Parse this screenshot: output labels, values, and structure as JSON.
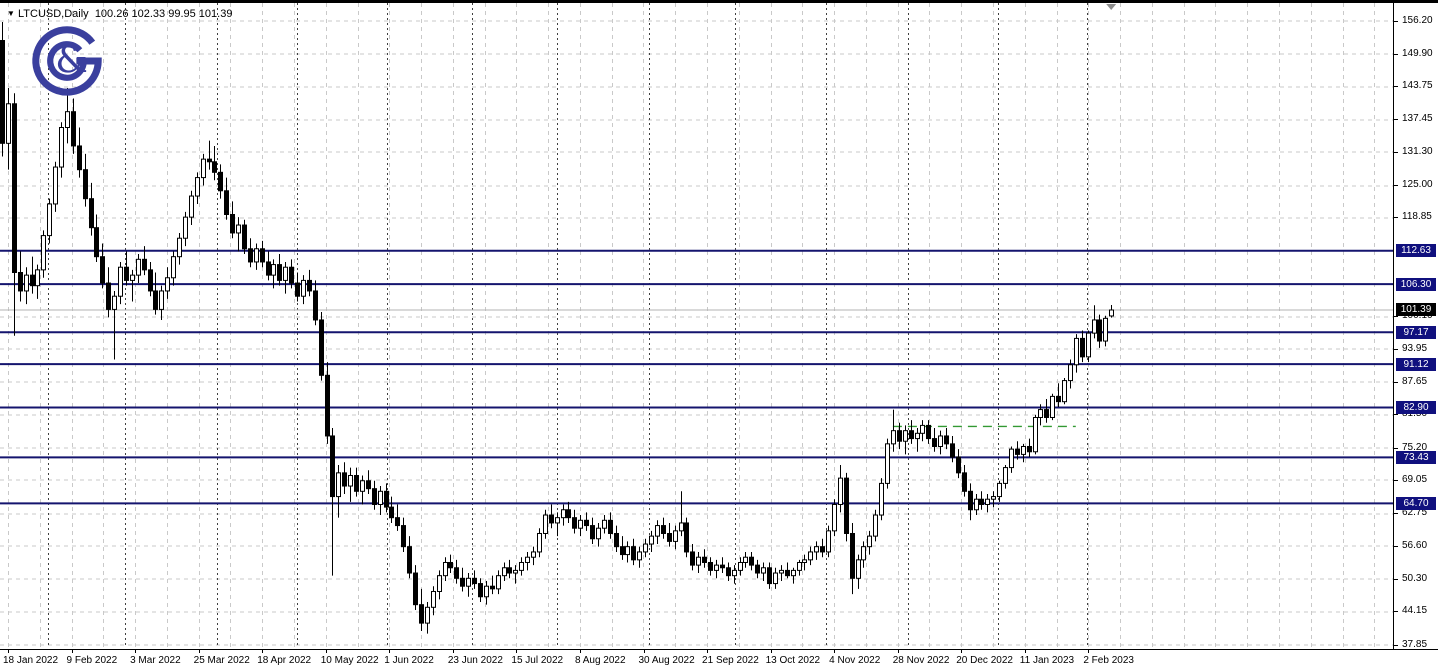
{
  "header": {
    "dropdown_glyph": "▼",
    "symbol": "LTCUSD,Daily",
    "quote": "100.26 102.33 99.95 101.39"
  },
  "logo": {
    "glyph": "&",
    "color": "#3a3f9e"
  },
  "colors": {
    "frame": "#000000",
    "grid": "#c9c9c9",
    "separator": "#3f3f3f",
    "level_line": "#14146e",
    "badge_bg": "#10107e",
    "current_badge_bg": "#000000",
    "badge_text": "#ffffff",
    "trend": "#339933",
    "current_line": "#b3b3b3",
    "bull_body": "#ffffff",
    "bear_body": "#000000",
    "wick": "#000000",
    "shift_marker": "#8c8c8c"
  },
  "chart_data": {
    "type": "candlestick",
    "symbol": "LTCUSD",
    "timeframe": "Daily",
    "title": "LTCUSD,Daily",
    "last_quote": {
      "open": 100.26,
      "high": 102.33,
      "low": 99.95,
      "close": 101.39
    },
    "current_price": 101.39,
    "y_axis": {
      "max": 156.2,
      "min": 37.85,
      "ticks": [
        156.2,
        149.9,
        143.75,
        137.45,
        131.3,
        125.0,
        118.85,
        100.1,
        93.95,
        87.65,
        81.5,
        75.2,
        69.05,
        62.75,
        56.6,
        50.3,
        44.15,
        37.85
      ]
    },
    "x_labels": [
      "18 Jan 2022",
      "9 Feb 2022",
      "3 Mar 2022",
      "25 Mar 2022",
      "18 Apr 2022",
      "10 May 2022",
      "1 Jun 2022",
      "23 Jun 2022",
      "15 Jul 2022",
      "8 Aug 2022",
      "30 Aug 2022",
      "21 Sep 2022",
      "13 Oct 2022",
      "4 Nov 2022",
      "28 Nov 2022",
      "20 Dec 2022",
      "11 Jan 2023",
      "2 Feb 2023"
    ],
    "levels": [
      112.63,
      106.3,
      97.17,
      91.12,
      82.9,
      73.43,
      64.7
    ],
    "trend_line": {
      "price": 79.3,
      "from_bar": 151,
      "to_bar": 182,
      "style": "dashed"
    },
    "month_separator_bars": [
      7.8,
      20.8,
      36.4,
      50.0,
      65.3,
      79.7,
      94.1,
      109.7,
      124.2,
      139.7,
      153.6,
      168.8,
      183.9
    ],
    "grid": {
      "horizontal": true,
      "vertical": true
    },
    "bars": [
      [
        152.5,
        156.0,
        130.5,
        133.0
      ],
      [
        133.0,
        143.5,
        128.0,
        140.5
      ],
      [
        140.5,
        142.5,
        96.5,
        108.5
      ],
      [
        108.5,
        112.5,
        103.0,
        105.0
      ],
      [
        105.0,
        109.5,
        102.5,
        108.0
      ],
      [
        108.0,
        111.5,
        104.5,
        106.0
      ],
      [
        106.0,
        110.0,
        103.5,
        109.0
      ],
      [
        109.0,
        116.5,
        107.5,
        115.5
      ],
      [
        115.5,
        122.5,
        114.0,
        121.5
      ],
      [
        121.5,
        129.5,
        120.0,
        128.5
      ],
      [
        128.5,
        137.0,
        126.5,
        136.0
      ],
      [
        136.0,
        143.5,
        133.0,
        139.0
      ],
      [
        139.0,
        141.5,
        131.0,
        132.5
      ],
      [
        132.5,
        136.0,
        126.5,
        128.0
      ],
      [
        128.0,
        131.0,
        121.0,
        122.5
      ],
      [
        122.5,
        125.5,
        115.5,
        117.0
      ],
      [
        117.0,
        119.5,
        110.5,
        111.5
      ],
      [
        111.5,
        114.0,
        105.5,
        106.5
      ],
      [
        106.5,
        109.5,
        100.0,
        101.5
      ],
      [
        101.5,
        105.0,
        92.0,
        104.0
      ],
      [
        104.0,
        110.5,
        102.5,
        109.5
      ],
      [
        109.5,
        112.5,
        106.0,
        107.0
      ],
      [
        107.0,
        109.0,
        103.0,
        108.0
      ],
      [
        108.0,
        112.0,
        106.5,
        111.0
      ],
      [
        111.0,
        113.5,
        108.0,
        109.0
      ],
      [
        109.0,
        110.5,
        104.0,
        105.0
      ],
      [
        105.0,
        108.5,
        100.5,
        101.5
      ],
      [
        101.5,
        106.0,
        99.5,
        105.0
      ],
      [
        105.0,
        109.5,
        103.5,
        107.5
      ],
      [
        107.5,
        112.5,
        106.0,
        111.5
      ],
      [
        111.5,
        116.0,
        110.0,
        115.0
      ],
      [
        115.0,
        120.0,
        113.5,
        119.0
      ],
      [
        119.0,
        124.0,
        117.5,
        123.0
      ],
      [
        123.0,
        127.5,
        121.5,
        126.5
      ],
      [
        126.5,
        131.0,
        125.0,
        130.0
      ],
      [
        130.0,
        133.5,
        128.0,
        129.5
      ],
      [
        129.5,
        132.5,
        126.0,
        127.5
      ],
      [
        127.5,
        129.0,
        122.5,
        124.0
      ],
      [
        124.0,
        126.5,
        118.5,
        119.5
      ],
      [
        119.5,
        122.0,
        115.0,
        116.0
      ],
      [
        116.0,
        119.0,
        112.5,
        117.5
      ],
      [
        117.5,
        118.5,
        112.0,
        113.0
      ],
      [
        113.0,
        115.0,
        109.5,
        110.5
      ],
      [
        110.5,
        114.0,
        109.0,
        113.0
      ],
      [
        113.0,
        114.5,
        109.5,
        110.5
      ],
      [
        110.5,
        112.5,
        107.0,
        108.0
      ],
      [
        108.0,
        111.0,
        105.5,
        110.0
      ],
      [
        110.0,
        112.0,
        106.0,
        107.0
      ],
      [
        107.0,
        110.5,
        104.5,
        109.5
      ],
      [
        109.5,
        111.0,
        105.5,
        106.5
      ],
      [
        106.5,
        108.5,
        103.0,
        104.0
      ],
      [
        104.0,
        108.0,
        102.5,
        107.0
      ],
      [
        107.0,
        109.0,
        104.0,
        105.0
      ],
      [
        105.0,
        107.0,
        98.5,
        99.5
      ],
      [
        99.5,
        101.0,
        88.0,
        89.0
      ],
      [
        89.0,
        91.5,
        76.0,
        77.5
      ],
      [
        77.5,
        79.0,
        51.0,
        66.0
      ],
      [
        66.0,
        72.0,
        62.0,
        70.5
      ],
      [
        70.5,
        72.5,
        66.5,
        68.0
      ],
      [
        68.0,
        71.5,
        65.0,
        70.0
      ],
      [
        70.0,
        71.5,
        66.0,
        67.0
      ],
      [
        67.0,
        70.0,
        64.5,
        69.0
      ],
      [
        69.0,
        71.0,
        66.5,
        67.5
      ],
      [
        67.5,
        69.0,
        63.5,
        64.5
      ],
      [
        64.5,
        68.0,
        62.5,
        67.0
      ],
      [
        67.0,
        68.5,
        63.0,
        64.0
      ],
      [
        64.0,
        66.0,
        61.0,
        62.0
      ],
      [
        62.0,
        64.5,
        59.5,
        60.5
      ],
      [
        60.5,
        62.0,
        55.5,
        56.5
      ],
      [
        56.5,
        58.5,
        50.5,
        51.5
      ],
      [
        51.5,
        53.0,
        44.5,
        45.5
      ],
      [
        45.5,
        48.5,
        40.5,
        42.0
      ],
      [
        42.0,
        46.0,
        40.0,
        45.0
      ],
      [
        45.0,
        49.0,
        43.5,
        48.0
      ],
      [
        48.0,
        52.0,
        46.5,
        51.0
      ],
      [
        51.0,
        54.5,
        50.0,
        53.5
      ],
      [
        53.5,
        55.0,
        51.5,
        52.5
      ],
      [
        52.5,
        54.0,
        49.5,
        50.5
      ],
      [
        50.5,
        52.5,
        48.0,
        49.0
      ],
      [
        49.0,
        51.5,
        47.0,
        50.5
      ],
      [
        50.5,
        52.0,
        48.5,
        49.5
      ],
      [
        49.5,
        50.5,
        46.0,
        47.0
      ],
      [
        47.0,
        50.0,
        45.5,
        49.0
      ],
      [
        49.0,
        51.0,
        47.5,
        48.5
      ],
      [
        48.5,
        52.0,
        47.5,
        51.0
      ],
      [
        51.0,
        53.5,
        50.0,
        52.5
      ],
      [
        52.5,
        54.0,
        50.5,
        51.5
      ],
      [
        51.5,
        53.0,
        49.5,
        52.0
      ],
      [
        52.0,
        54.5,
        51.0,
        53.5
      ],
      [
        53.5,
        55.5,
        52.0,
        54.5
      ],
      [
        54.5,
        56.5,
        53.0,
        55.5
      ],
      [
        55.5,
        60.0,
        54.5,
        59.0
      ],
      [
        59.0,
        63.5,
        58.0,
        62.5
      ],
      [
        62.5,
        64.5,
        60.0,
        61.0
      ],
      [
        61.0,
        63.0,
        58.5,
        62.0
      ],
      [
        62.0,
        64.5,
        60.5,
        63.5
      ],
      [
        63.5,
        65.0,
        61.0,
        62.0
      ],
      [
        62.0,
        63.5,
        59.0,
        60.0
      ],
      [
        60.0,
        62.5,
        58.5,
        61.5
      ],
      [
        61.5,
        63.0,
        59.5,
        60.5
      ],
      [
        60.5,
        62.0,
        57.0,
        58.0
      ],
      [
        58.0,
        61.0,
        56.5,
        60.0
      ],
      [
        60.0,
        62.5,
        59.0,
        61.5
      ],
      [
        61.5,
        63.0,
        58.0,
        59.0
      ],
      [
        59.0,
        60.5,
        55.5,
        56.5
      ],
      [
        56.5,
        58.5,
        54.0,
        55.0
      ],
      [
        55.0,
        57.5,
        53.5,
        56.5
      ],
      [
        56.5,
        58.0,
        53.0,
        54.0
      ],
      [
        54.0,
        56.5,
        52.5,
        55.5
      ],
      [
        55.5,
        58.0,
        54.5,
        57.0
      ],
      [
        57.0,
        59.5,
        55.5,
        58.5
      ],
      [
        58.5,
        61.5,
        57.0,
        60.5
      ],
      [
        60.5,
        62.0,
        58.0,
        59.0
      ],
      [
        59.0,
        61.0,
        56.5,
        57.5
      ],
      [
        57.5,
        60.5,
        56.0,
        59.5
      ],
      [
        59.5,
        67.0,
        58.5,
        61.0
      ],
      [
        61.0,
        62.0,
        54.5,
        55.5
      ],
      [
        55.5,
        57.0,
        52.0,
        53.0
      ],
      [
        53.0,
        55.5,
        51.5,
        54.5
      ],
      [
        54.5,
        56.0,
        52.5,
        53.5
      ],
      [
        53.5,
        54.5,
        51.0,
        52.0
      ],
      [
        52.0,
        54.0,
        50.5,
        53.0
      ],
      [
        53.0,
        54.5,
        51.5,
        52.5
      ],
      [
        52.5,
        53.5,
        50.0,
        51.0
      ],
      [
        51.0,
        53.0,
        49.5,
        52.0
      ],
      [
        52.0,
        54.5,
        51.0,
        53.5
      ],
      [
        53.5,
        55.5,
        52.5,
        54.5
      ],
      [
        54.5,
        55.5,
        52.0,
        53.0
      ],
      [
        53.0,
        54.0,
        50.5,
        51.5
      ],
      [
        51.5,
        53.5,
        50.0,
        52.5
      ],
      [
        52.5,
        53.5,
        48.5,
        49.5
      ],
      [
        49.5,
        52.5,
        48.5,
        51.5
      ],
      [
        51.5,
        53.0,
        50.0,
        52.0
      ],
      [
        52.0,
        53.5,
        50.5,
        51.0
      ],
      [
        51.0,
        52.5,
        49.5,
        52.0
      ],
      [
        52.0,
        54.0,
        51.0,
        53.5
      ],
      [
        53.5,
        55.0,
        52.0,
        54.0
      ],
      [
        54.0,
        56.5,
        53.0,
        55.5
      ],
      [
        55.5,
        57.5,
        54.0,
        56.5
      ],
      [
        56.5,
        58.0,
        54.5,
        55.5
      ],
      [
        55.5,
        60.5,
        54.5,
        59.5
      ],
      [
        59.5,
        65.5,
        58.5,
        64.5
      ],
      [
        64.5,
        72.0,
        63.0,
        69.5
      ],
      [
        69.5,
        70.5,
        57.5,
        59.0
      ],
      [
        59.0,
        61.0,
        47.5,
        50.5
      ],
      [
        50.5,
        55.0,
        48.5,
        54.0
      ],
      [
        54.0,
        57.5,
        52.5,
        56.5
      ],
      [
        56.5,
        59.5,
        55.0,
        58.5
      ],
      [
        58.5,
        63.5,
        57.5,
        62.5
      ],
      [
        62.5,
        69.5,
        61.5,
        68.5
      ],
      [
        68.5,
        77.0,
        67.5,
        76.0
      ],
      [
        76.0,
        82.5,
        74.5,
        78.5
      ],
      [
        78.5,
        80.0,
        75.0,
        76.5
      ],
      [
        76.5,
        79.5,
        74.0,
        78.5
      ],
      [
        78.5,
        80.5,
        76.0,
        77.0
      ],
      [
        77.0,
        79.0,
        74.5,
        78.0
      ],
      [
        78.0,
        80.5,
        76.5,
        79.5
      ],
      [
        79.5,
        80.5,
        76.0,
        77.0
      ],
      [
        77.0,
        79.0,
        74.5,
        75.5
      ],
      [
        75.5,
        78.5,
        74.0,
        77.5
      ],
      [
        77.5,
        79.0,
        75.0,
        76.0
      ],
      [
        76.0,
        77.5,
        72.5,
        73.5
      ],
      [
        73.5,
        75.0,
        69.5,
        70.5
      ],
      [
        70.5,
        72.0,
        66.0,
        67.0
      ],
      [
        67.0,
        68.5,
        61.5,
        63.5
      ],
      [
        63.5,
        66.5,
        62.5,
        65.5
      ],
      [
        65.5,
        67.0,
        63.5,
        64.5
      ],
      [
        64.5,
        66.5,
        63.0,
        65.5
      ],
      [
        65.5,
        67.0,
        64.0,
        66.0
      ],
      [
        66.0,
        69.0,
        65.0,
        68.5
      ],
      [
        68.5,
        72.0,
        67.5,
        71.5
      ],
      [
        71.5,
        75.5,
        70.5,
        75.0
      ],
      [
        75.0,
        76.5,
        73.0,
        74.0
      ],
      [
        74.0,
        76.0,
        72.5,
        75.5
      ],
      [
        75.5,
        77.0,
        73.5,
        74.5
      ],
      [
        74.5,
        81.5,
        74.0,
        81.0
      ],
      [
        81.0,
        83.5,
        79.5,
        82.5
      ],
      [
        82.5,
        84.5,
        80.0,
        81.0
      ],
      [
        81.0,
        85.5,
        80.5,
        85.0
      ],
      [
        85.0,
        87.5,
        83.0,
        84.0
      ],
      [
        84.0,
        88.5,
        83.5,
        88.0
      ],
      [
        88.0,
        92.0,
        86.5,
        91.0
      ],
      [
        91.0,
        96.8,
        89.5,
        96.0
      ],
      [
        96.0,
        97.5,
        91.5,
        92.5
      ],
      [
        92.5,
        97.5,
        91.5,
        97.0
      ],
      [
        97.0,
        102.3,
        96.0,
        99.5
      ],
      [
        99.5,
        100.5,
        94.2,
        95.5
      ],
      [
        95.5,
        100.3,
        94.5,
        99.8
      ],
      [
        100.26,
        102.33,
        99.95,
        101.39
      ]
    ]
  }
}
